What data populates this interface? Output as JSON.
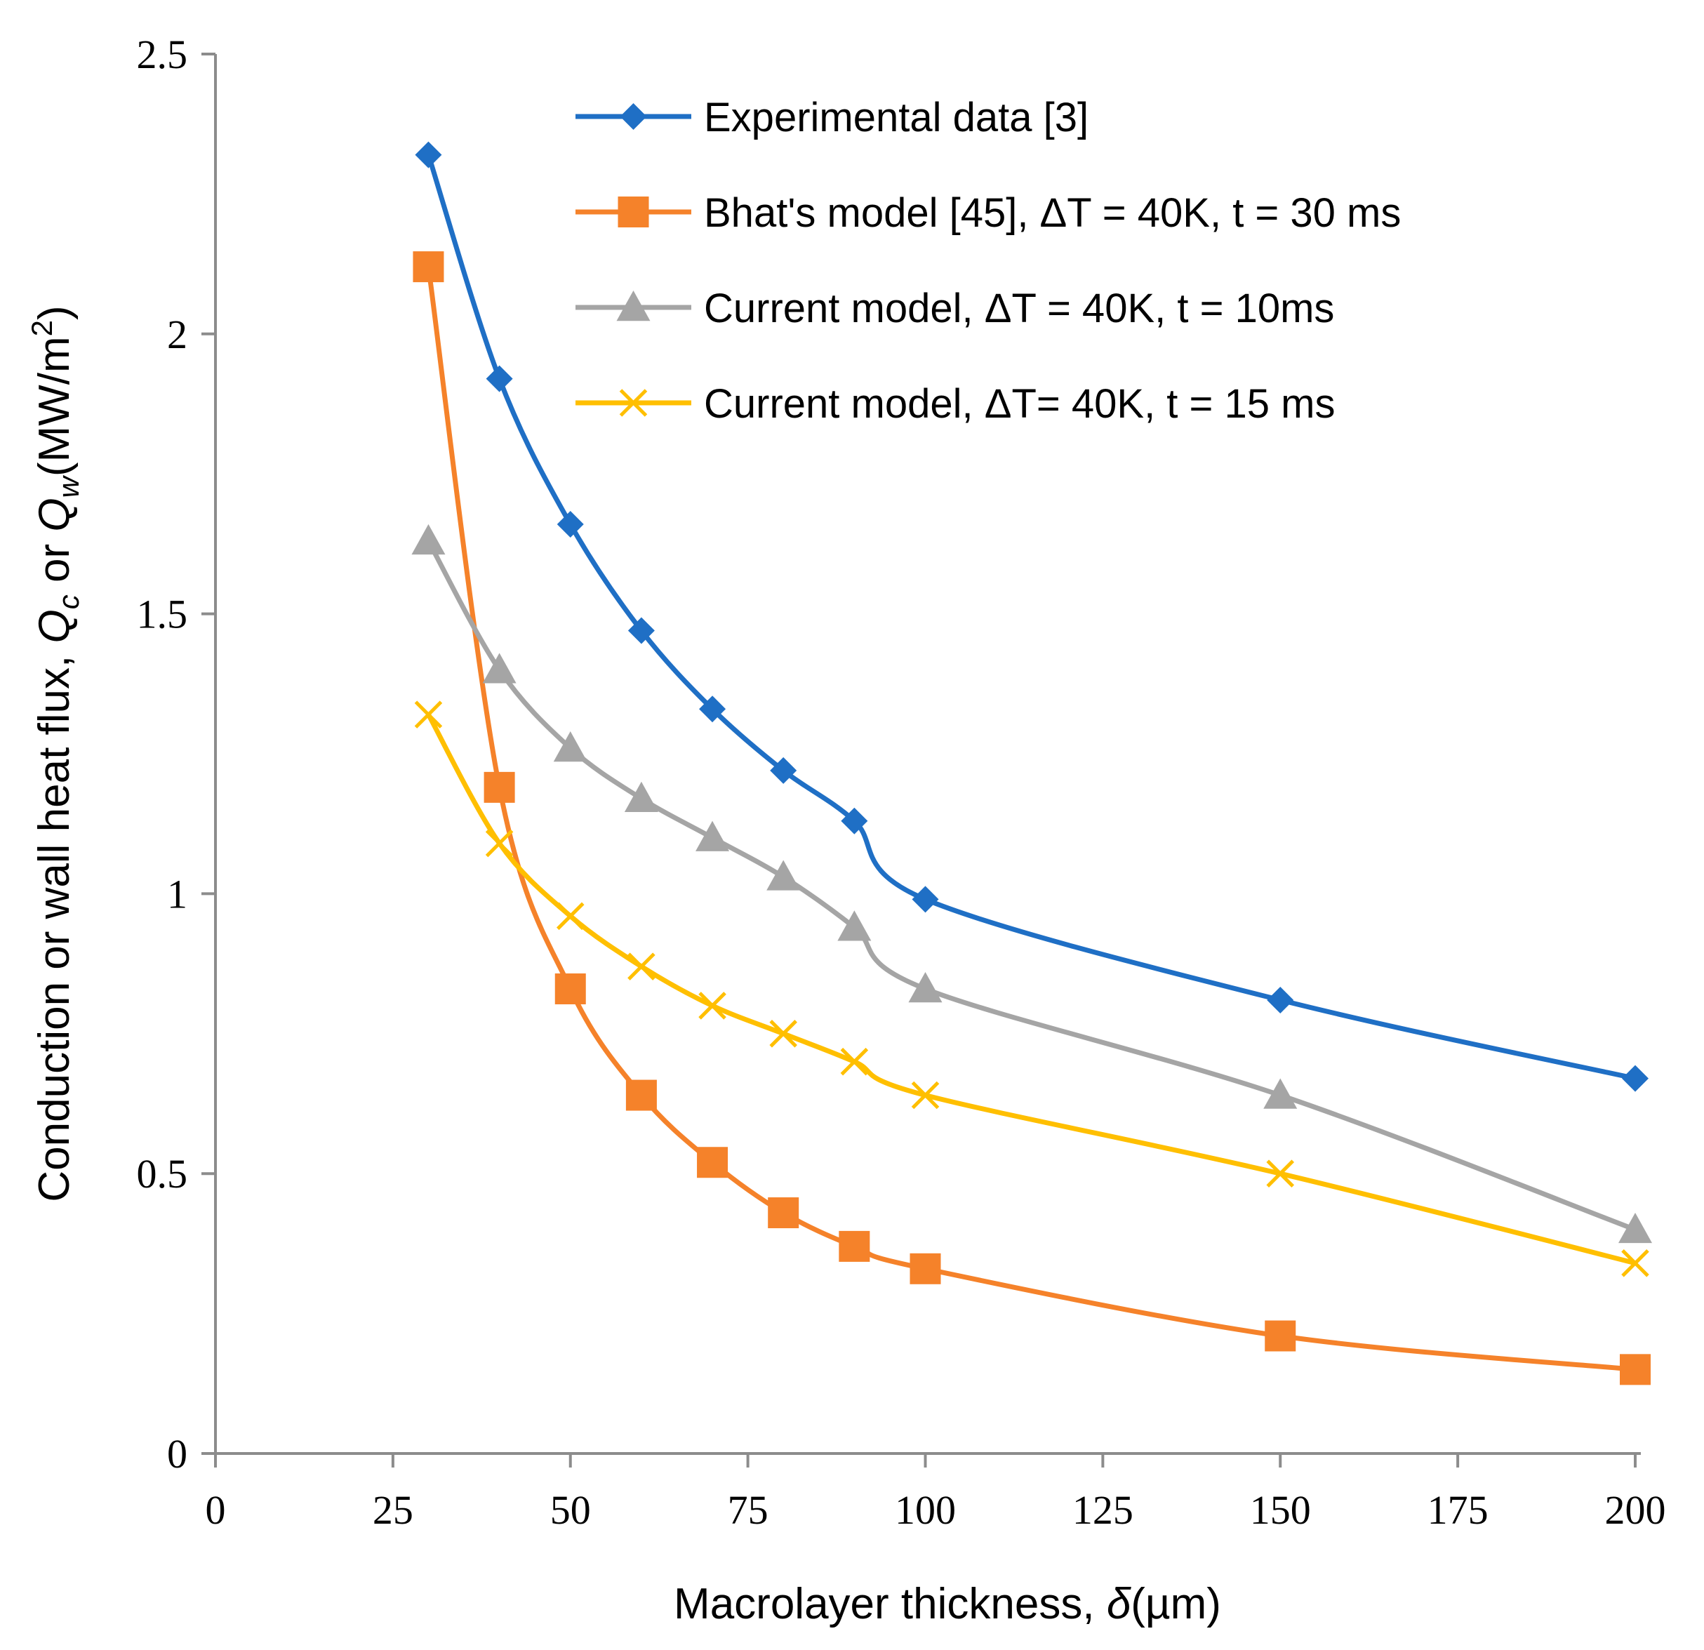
{
  "chart_data": {
    "type": "line",
    "title": "",
    "xlabel": {
      "main": "Macrolayer thickness, ",
      "symbol": "δ",
      "unit": "(µm)"
    },
    "ylabel": {
      "prefix": "Conduction or wall heat flux, ",
      "q1": "Q",
      "q1_sub": "c",
      "mid": " or ",
      "q2": "Q",
      "q2_sub": "w",
      "unit": "(MW/m",
      "unit_sup": "2",
      "unit_end": ")"
    },
    "xlim": [
      0,
      200
    ],
    "ylim": [
      0,
      2.5
    ],
    "x_ticks": [
      0,
      25,
      50,
      75,
      100,
      125,
      150,
      175,
      200
    ],
    "x_tick_labels": [
      "0",
      "25",
      "50",
      "75",
      "100",
      "125",
      "150",
      "175",
      "200"
    ],
    "y_ticks": [
      0,
      0.5,
      1,
      1.5,
      2,
      2.5
    ],
    "y_tick_labels": [
      "0",
      "0.5",
      "1",
      "1.5",
      "2",
      "2.5"
    ],
    "grid": false,
    "legend_position": "top-right",
    "x": [
      30,
      40,
      50,
      60,
      70,
      80,
      90,
      100,
      150,
      200
    ],
    "series": [
      {
        "name": "Experimental data [3]",
        "color": "#1f6fc5",
        "marker": "diamond",
        "values": [
          2.32,
          1.92,
          1.66,
          1.47,
          1.33,
          1.22,
          1.13,
          0.99,
          0.81,
          0.67
        ]
      },
      {
        "name": "Bhat's model [45], ΔT = 40K, t = 30 ms",
        "color": "#f5822a",
        "marker": "square",
        "values": [
          2.12,
          1.19,
          0.83,
          0.64,
          0.52,
          0.43,
          0.37,
          0.33,
          0.21,
          0.15
        ]
      },
      {
        "name": "Current model, ΔT = 40K,  t = 10ms",
        "color": "#a5a5a5",
        "marker": "triangle",
        "values": [
          1.63,
          1.4,
          1.26,
          1.17,
          1.1,
          1.03,
          0.94,
          0.83,
          0.64,
          0.4
        ]
      },
      {
        "name": "Current model, ΔT= 40K, t = 15 ms",
        "color": "#ffbf00",
        "marker": "x",
        "values": [
          1.32,
          1.09,
          0.96,
          0.87,
          0.8,
          0.75,
          0.7,
          0.64,
          0.5,
          0.34
        ]
      }
    ]
  }
}
